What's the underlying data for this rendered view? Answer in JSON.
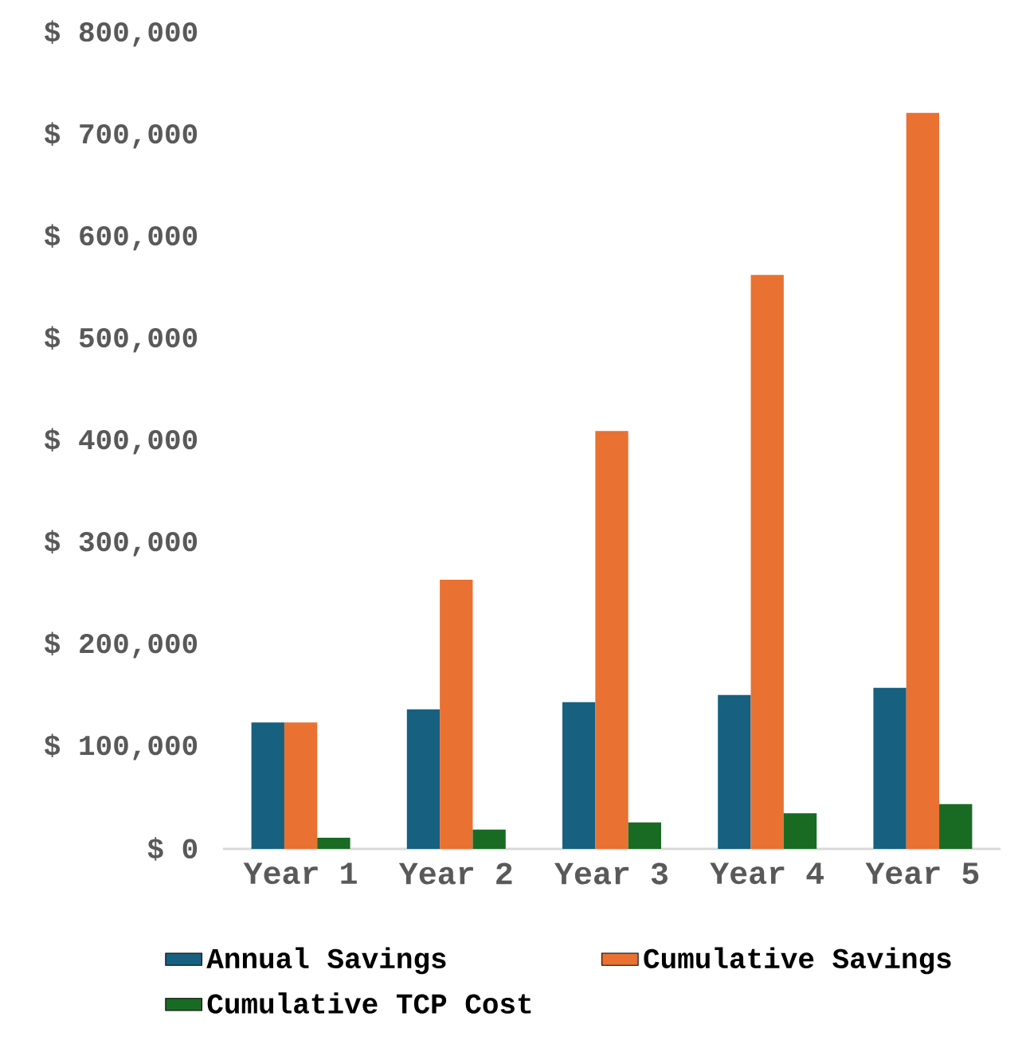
{
  "chart_data": {
    "type": "bar",
    "categories": [
      "Year 1",
      "Year 2",
      "Year 3",
      "Year 4",
      "Year 5"
    ],
    "series": [
      {
        "name": "Annual Savings",
        "color": "#17607f",
        "values": [
          124000,
          137000,
          144000,
          151000,
          158000
        ]
      },
      {
        "name": "Cumulative Savings",
        "color": "#e97132",
        "values": [
          124000,
          264000,
          410000,
          563000,
          722000
        ]
      },
      {
        "name": "Cumulative TCP Cost",
        "color": "#196b24",
        "values": [
          11000,
          19000,
          26000,
          35000,
          44000
        ]
      }
    ],
    "ylim": [
      0,
      800000
    ],
    "yticks": [
      {
        "value": 0,
        "label": "$ 0"
      },
      {
        "value": 100000,
        "label": "$ 100,000"
      },
      {
        "value": 200000,
        "label": "$ 200,000"
      },
      {
        "value": 300000,
        "label": "$ 300,000"
      },
      {
        "value": 400000,
        "label": "$ 400,000"
      },
      {
        "value": 500000,
        "label": "$ 500,000"
      },
      {
        "value": 600000,
        "label": "$ 600,000"
      },
      {
        "value": 700000,
        "label": "$ 700,000"
      },
      {
        "value": 800000,
        "label": "$ 800,000"
      }
    ],
    "legend": "bottom"
  }
}
